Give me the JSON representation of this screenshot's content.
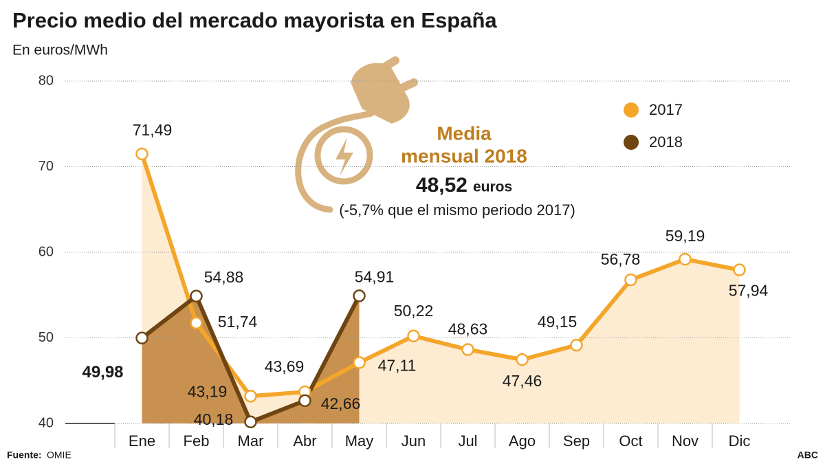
{
  "chart_data": {
    "type": "line",
    "title": "Precio medio del mercado mayorista en España",
    "subtitle": "En euros/MWh",
    "categories": [
      "Ene",
      "Feb",
      "Mar",
      "Abr",
      "May",
      "Jun",
      "Jul",
      "Ago",
      "Sep",
      "Oct",
      "Nov",
      "Dic"
    ],
    "series": [
      {
        "name": "2017",
        "color": "#f4a62a",
        "fill": "#fdebd2",
        "values": [
          71.49,
          51.74,
          43.19,
          43.69,
          47.11,
          50.22,
          48.63,
          47.46,
          49.15,
          56.78,
          59.19,
          57.94
        ],
        "value_labels": [
          "71,49",
          "51,74",
          "43,19",
          "43,69",
          "47,11",
          "50,22",
          "48,63",
          "47,46",
          "49,15",
          "56,78",
          "59,19",
          "57,94"
        ]
      },
      {
        "name": "2018",
        "color": "#6e4512",
        "fill": "#c9914f",
        "values": [
          49.98,
          54.88,
          40.18,
          42.66,
          54.91,
          null,
          null,
          null,
          null,
          null,
          null,
          null
        ],
        "value_labels": [
          "49,98",
          "54,88",
          "40,18",
          "42,66",
          "54,91",
          null,
          null,
          null,
          null,
          null,
          null,
          null
        ]
      }
    ],
    "ylim": [
      40,
      80
    ],
    "yticks": [
      40,
      50,
      60,
      70,
      80
    ],
    "grid": true,
    "legend": "top-right",
    "annotation": {
      "title_lines": [
        "Media",
        "mensual 2018"
      ],
      "value": "48,52",
      "unit": "euros",
      "note": "(-5,7% que el mismo periodo 2017)"
    },
    "source_label": "Fuente:",
    "source": "OMIE",
    "credit": "ABC"
  }
}
